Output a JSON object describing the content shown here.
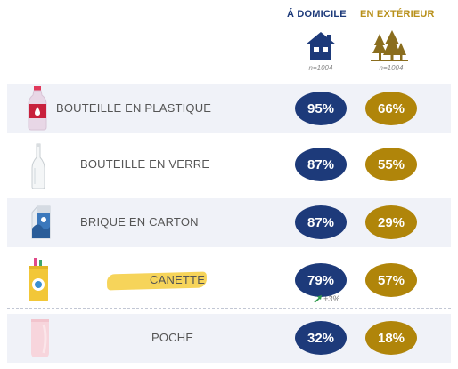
{
  "header": {
    "home_label": "Á DOMICILE",
    "outside_label": "EN EXTÉRIEUR",
    "home_n": "n=1004",
    "outside_n": "n=1004"
  },
  "colors": {
    "home": "#1d3a7a",
    "outside": "#b0850a",
    "row_shade": "#f0f2f8",
    "highlight": "#f4cc3d"
  },
  "icons": {
    "home": "house-icon",
    "outside": "trees-icon",
    "rows": [
      "plastic-bottle-icon",
      "glass-bottle-icon",
      "carton-icon",
      "can-icon",
      "pouch-icon"
    ]
  },
  "chart_data": {
    "type": "table",
    "columns": [
      "Á DOMICILE",
      "EN EXTÉRIEUR"
    ],
    "categories": [
      "BOUTEILLE EN PLASTIQUE",
      "BOUTEILLE EN VERRE",
      "BRIQUE EN CARTON",
      "CANETTE",
      "POCHE"
    ],
    "series": [
      {
        "name": "Á DOMICILE",
        "values": [
          95,
          87,
          87,
          79,
          32
        ],
        "labels": [
          "95%",
          "87%",
          "87%",
          "79%",
          "32%"
        ]
      },
      {
        "name": "EN EXTÉRIEUR",
        "values": [
          66,
          55,
          29,
          57,
          18
        ],
        "labels": [
          "66%",
          "55%",
          "29%",
          "57%",
          "18%"
        ]
      }
    ],
    "annotations": [
      {
        "category": "CANETTE",
        "series": "Á DOMICILE",
        "text": "+3%",
        "direction": "up"
      }
    ],
    "highlighted_category": "CANETTE"
  }
}
